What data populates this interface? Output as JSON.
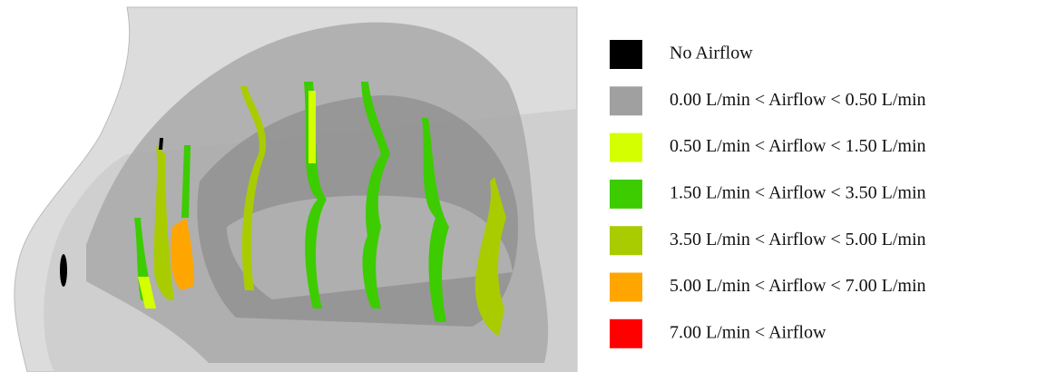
{
  "legend": {
    "items": [
      {
        "label": "No Airflow",
        "color": "#000000"
      },
      {
        "label": "0.00 L/min < Airflow < 0.50 L/min",
        "color": "#a0a0a0"
      },
      {
        "label": "0.50 L/min < Airflow < 1.50 L/min",
        "color": "#d4ff00"
      },
      {
        "label": "1.50 L/min < Airflow < 3.50 L/min",
        "color": "#3ccc00"
      },
      {
        "label": "3.50 L/min < Airflow < 5.00 L/min",
        "color": "#a8cc00"
      },
      {
        "label": "5.00 L/min < Airflow < 7.00 L/min",
        "color": "#ffa500"
      },
      {
        "label": "7.00 L/min < Airflow",
        "color": "#ff0000"
      }
    ]
  }
}
